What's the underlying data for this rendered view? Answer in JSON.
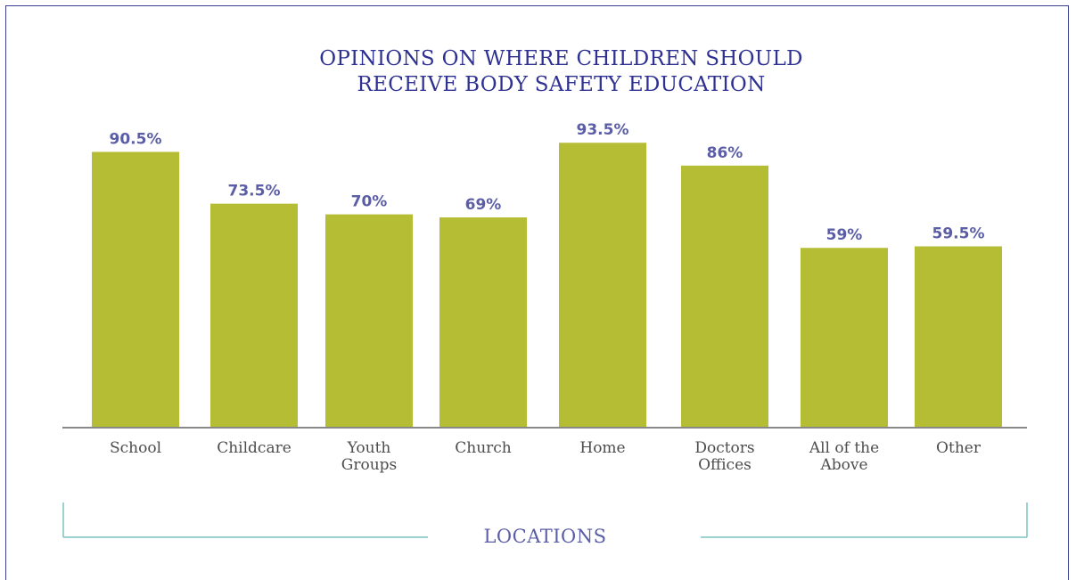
{
  "chart_data": {
    "type": "bar",
    "title_lines": [
      "OPINIONS ON WHERE CHILDREN SHOULD",
      "RECEIVE BODY SAFETY EDUCATION"
    ],
    "xlabel": "LOCATIONS",
    "ylabel": "",
    "ylim": [
      0,
      100
    ],
    "categories": [
      [
        "School"
      ],
      [
        "Childcare"
      ],
      [
        "Youth",
        "Groups"
      ],
      [
        "Church"
      ],
      [
        "Home"
      ],
      [
        "Doctors",
        "Offices"
      ],
      [
        "All of the",
        "Above"
      ],
      [
        "Other"
      ]
    ],
    "values": [
      90.5,
      73.5,
      70,
      69,
      93.5,
      86,
      59,
      59.5
    ],
    "value_labels": [
      "90.5%",
      "73.5%",
      "70%",
      "69%",
      "93.5%",
      "86%",
      "59%",
      "59.5%"
    ],
    "grid": false,
    "colors": {
      "bar": "#b5bd35",
      "value_label": "#5b5ea6",
      "title": "#2e3192",
      "axis": "#888888",
      "bracket": "#7cc4bf",
      "category_label": "#4d4d4d"
    }
  }
}
